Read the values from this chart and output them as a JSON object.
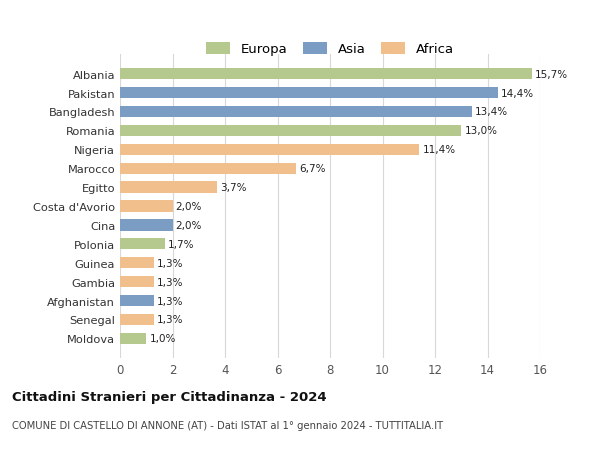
{
  "countries": [
    "Albania",
    "Pakistan",
    "Bangladesh",
    "Romania",
    "Nigeria",
    "Marocco",
    "Egitto",
    "Costa d'Avorio",
    "Cina",
    "Polonia",
    "Guinea",
    "Gambia",
    "Afghanistan",
    "Senegal",
    "Moldova"
  ],
  "values": [
    15.7,
    14.4,
    13.4,
    13.0,
    11.4,
    6.7,
    3.7,
    2.0,
    2.0,
    1.7,
    1.3,
    1.3,
    1.3,
    1.3,
    1.0
  ],
  "labels": [
    "15,7%",
    "14,4%",
    "13,4%",
    "13,0%",
    "11,4%",
    "6,7%",
    "3,7%",
    "2,0%",
    "2,0%",
    "1,7%",
    "1,3%",
    "1,3%",
    "1,3%",
    "1,3%",
    "1,0%"
  ],
  "continents": [
    "Europa",
    "Asia",
    "Asia",
    "Europa",
    "Africa",
    "Africa",
    "Africa",
    "Africa",
    "Asia",
    "Europa",
    "Africa",
    "Africa",
    "Asia",
    "Africa",
    "Europa"
  ],
  "colors": {
    "Europa": "#b5c98e",
    "Asia": "#7b9dc4",
    "Africa": "#f0bf8c"
  },
  "title": "Cittadini Stranieri per Cittadinanza - 2024",
  "subtitle": "COMUNE DI CASTELLO DI ANNONE (AT) - Dati ISTAT al 1° gennaio 2024 - TUTTITALIA.IT",
  "xlim": [
    0,
    16
  ],
  "xticks": [
    0,
    2,
    4,
    6,
    8,
    10,
    12,
    14,
    16
  ],
  "background_color": "#ffffff",
  "grid_color": "#d8d8d8"
}
